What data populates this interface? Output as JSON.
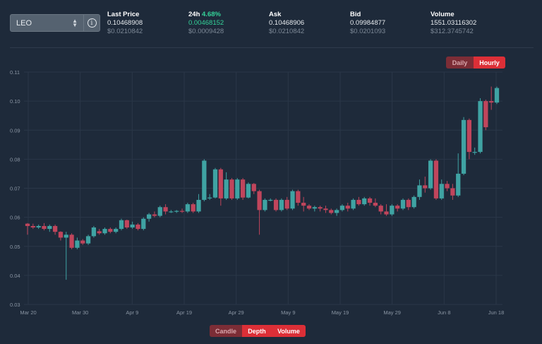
{
  "ticker": {
    "symbol": "LEO",
    "select_icon": "chevron-updown-icon",
    "info_icon": "info-icon"
  },
  "stats": {
    "last_price": {
      "label": "Last Price",
      "value": "0.10468908",
      "usd": "$0.0210842"
    },
    "change_24h": {
      "label": "24h",
      "percent": "4.68%",
      "value": "0.00468152",
      "usd": "$0.0009428"
    },
    "ask": {
      "label": "Ask",
      "value": "0.10468906",
      "usd": "$0.0210842"
    },
    "bid": {
      "label": "Bid",
      "value": "0.09984877",
      "usd": "$0.0201093"
    },
    "volume": {
      "label": "Volume",
      "value": "1551.03116302",
      "usd": "$312.3745742"
    }
  },
  "interval_toggle": {
    "daily": "Daily",
    "hourly": "Hourly",
    "selected": "hourly"
  },
  "view_toggle": {
    "candle": "Candle",
    "depth": "Depth",
    "volume": "Volume",
    "selected": "candle"
  },
  "colors": {
    "up": "#3fa3a3",
    "down": "#c0455c",
    "grid": "#2a3748",
    "axis_text": "#8a95a3"
  },
  "chart_data": {
    "type": "candlestick",
    "x_ticks": [
      "Mar 20",
      "Mar 30",
      "Apr 9",
      "Apr 19",
      "Apr 29",
      "May 9",
      "May 19",
      "May 29",
      "Jun 8",
      "Jun 18"
    ],
    "y_ticks": [
      "0.03",
      "0.04",
      "0.05",
      "0.06",
      "0.07",
      "0.08",
      "0.09",
      "0.10",
      "0.11"
    ],
    "ylim": [
      0.03,
      0.11
    ],
    "candles": [
      [
        0.0578,
        0.058,
        0.054,
        0.057
      ],
      [
        0.057,
        0.0578,
        0.056,
        0.0565
      ],
      [
        0.0565,
        0.0575,
        0.056,
        0.057
      ],
      [
        0.057,
        0.058,
        0.0555,
        0.056
      ],
      [
        0.056,
        0.0575,
        0.055,
        0.057
      ],
      [
        0.057,
        0.0575,
        0.054,
        0.055
      ],
      [
        0.055,
        0.0552,
        0.052,
        0.053
      ],
      [
        0.053,
        0.055,
        0.0385,
        0.054
      ],
      [
        0.054,
        0.0545,
        0.049,
        0.0495
      ],
      [
        0.0495,
        0.053,
        0.049,
        0.052
      ],
      [
        0.052,
        0.0525,
        0.0505,
        0.051
      ],
      [
        0.051,
        0.054,
        0.0505,
        0.0535
      ],
      [
        0.0535,
        0.057,
        0.053,
        0.0565
      ],
      [
        0.0552,
        0.056,
        0.054,
        0.0545
      ],
      [
        0.0545,
        0.0565,
        0.054,
        0.056
      ],
      [
        0.056,
        0.0565,
        0.0545,
        0.055
      ],
      [
        0.055,
        0.0565,
        0.0545,
        0.056
      ],
      [
        0.056,
        0.0595,
        0.0555,
        0.059
      ],
      [
        0.059,
        0.0592,
        0.056,
        0.0565
      ],
      [
        0.0565,
        0.0585,
        0.056,
        0.0575
      ],
      [
        0.0575,
        0.058,
        0.0555,
        0.056
      ],
      [
        0.056,
        0.06,
        0.0555,
        0.0595
      ],
      [
        0.0595,
        0.0615,
        0.0585,
        0.061
      ],
      [
        0.061,
        0.062,
        0.06,
        0.0605
      ],
      [
        0.0605,
        0.064,
        0.06,
        0.0635
      ],
      [
        0.0635,
        0.0645,
        0.061,
        0.062
      ],
      [
        0.062,
        0.0625,
        0.0615,
        0.062
      ],
      [
        0.062,
        0.0625,
        0.0615,
        0.0622
      ],
      [
        0.0622,
        0.063,
        0.0615,
        0.062
      ],
      [
        0.062,
        0.065,
        0.0615,
        0.0645
      ],
      [
        0.0645,
        0.065,
        0.0615,
        0.062
      ],
      [
        0.062,
        0.068,
        0.0615,
        0.066
      ],
      [
        0.066,
        0.08,
        0.0655,
        0.0795
      ],
      [
        0.0665,
        0.068,
        0.066,
        0.0668
      ],
      [
        0.0668,
        0.077,
        0.0665,
        0.0765
      ],
      [
        0.0765,
        0.077,
        0.064,
        0.0665
      ],
      [
        0.0665,
        0.0755,
        0.066,
        0.073
      ],
      [
        0.073,
        0.0735,
        0.066,
        0.0665
      ],
      [
        0.0665,
        0.0735,
        0.066,
        0.073
      ],
      [
        0.073,
        0.0735,
        0.066,
        0.0668
      ],
      [
        0.0668,
        0.072,
        0.0665,
        0.0715
      ],
      [
        0.0715,
        0.0718,
        0.068,
        0.069
      ],
      [
        0.069,
        0.0695,
        0.054,
        0.0625
      ],
      [
        0.0625,
        0.0665,
        0.062,
        0.066
      ],
      [
        0.066,
        0.0665,
        0.0655,
        0.066
      ],
      [
        0.066,
        0.0665,
        0.062,
        0.0625
      ],
      [
        0.0625,
        0.0665,
        0.062,
        0.066
      ],
      [
        0.066,
        0.067,
        0.0625,
        0.063
      ],
      [
        0.063,
        0.0695,
        0.0625,
        0.069
      ],
      [
        0.069,
        0.0695,
        0.064,
        0.065
      ],
      [
        0.065,
        0.067,
        0.062,
        0.064
      ],
      [
        0.064,
        0.0645,
        0.0625,
        0.063
      ],
      [
        0.063,
        0.064,
        0.062,
        0.0635
      ],
      [
        0.0635,
        0.064,
        0.062,
        0.063
      ],
      [
        0.063,
        0.064,
        0.0615,
        0.0625
      ],
      [
        0.0625,
        0.063,
        0.061,
        0.0615
      ],
      [
        0.0615,
        0.063,
        0.0605,
        0.0625
      ],
      [
        0.0625,
        0.0645,
        0.062,
        0.064
      ],
      [
        0.064,
        0.065,
        0.062,
        0.063
      ],
      [
        0.063,
        0.0665,
        0.0625,
        0.066
      ],
      [
        0.066,
        0.067,
        0.064,
        0.0645
      ],
      [
        0.0645,
        0.067,
        0.064,
        0.0665
      ],
      [
        0.0665,
        0.067,
        0.064,
        0.065
      ],
      [
        0.065,
        0.0665,
        0.0635,
        0.064
      ],
      [
        0.064,
        0.0645,
        0.061,
        0.062
      ],
      [
        0.062,
        0.0645,
        0.0605,
        0.061
      ],
      [
        0.061,
        0.0645,
        0.0605,
        0.064
      ],
      [
        0.064,
        0.0645,
        0.062,
        0.063
      ],
      [
        0.063,
        0.0665,
        0.0625,
        0.066
      ],
      [
        0.066,
        0.0665,
        0.0625,
        0.0635
      ],
      [
        0.0635,
        0.0675,
        0.063,
        0.067
      ],
      [
        0.067,
        0.073,
        0.066,
        0.071
      ],
      [
        0.071,
        0.074,
        0.0685,
        0.07
      ],
      [
        0.07,
        0.08,
        0.0695,
        0.0795
      ],
      [
        0.0795,
        0.08,
        0.066,
        0.0665
      ],
      [
        0.0665,
        0.073,
        0.066,
        0.0715
      ],
      [
        0.0715,
        0.0725,
        0.069,
        0.07
      ],
      [
        0.07,
        0.0715,
        0.066,
        0.0675
      ],
      [
        0.0675,
        0.082,
        0.067,
        0.075
      ],
      [
        0.075,
        0.0945,
        0.0745,
        0.0935
      ],
      [
        0.0935,
        0.094,
        0.08,
        0.0825
      ],
      [
        0.0825,
        0.084,
        0.0815,
        0.0825
      ],
      [
        0.0825,
        0.101,
        0.082,
        0.1
      ],
      [
        0.1,
        0.1005,
        0.09,
        0.091
      ],
      [
        0.1,
        0.105,
        0.097,
        0.0995
      ],
      [
        0.0995,
        0.105,
        0.099,
        0.1045
      ]
    ]
  }
}
